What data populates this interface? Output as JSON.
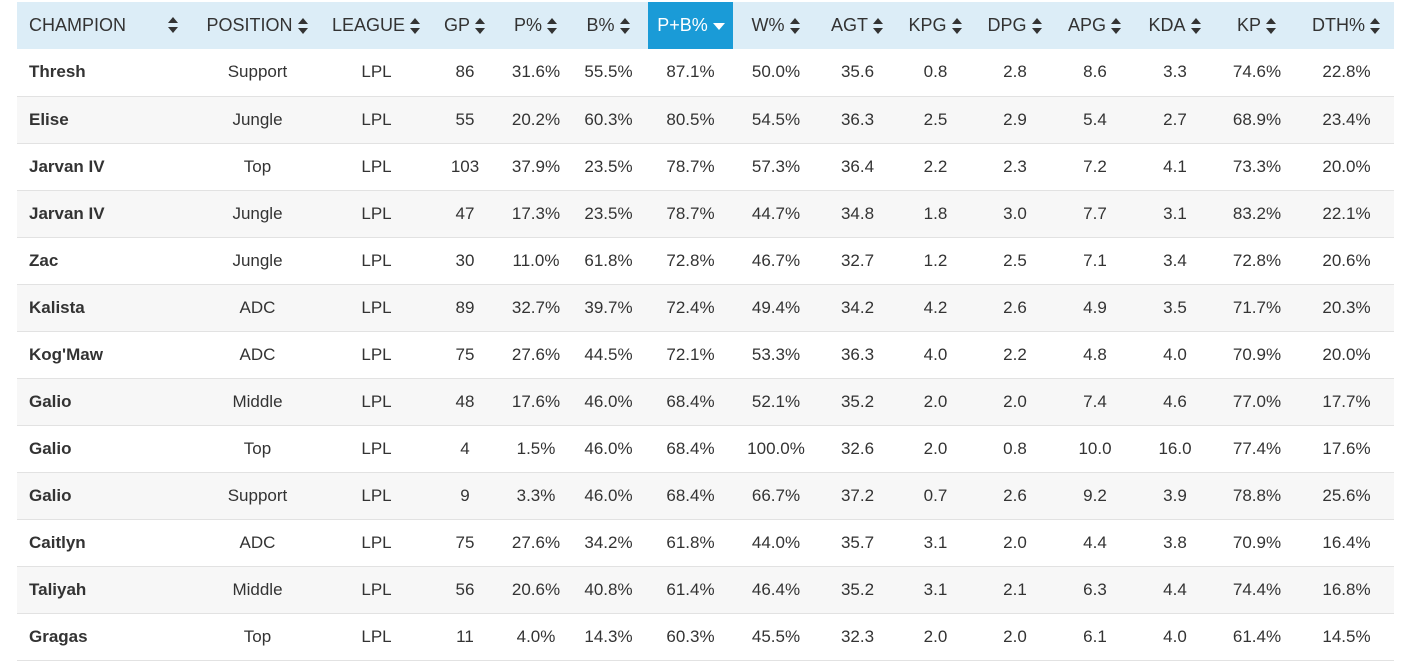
{
  "table": {
    "columns": [
      {
        "key": "champion",
        "label": "CHAMPION",
        "sortable": true,
        "active": false
      },
      {
        "key": "position",
        "label": "POSITION",
        "sortable": true,
        "active": false
      },
      {
        "key": "league",
        "label": "LEAGUE",
        "sortable": true,
        "active": false
      },
      {
        "key": "gp",
        "label": "GP",
        "sortable": true,
        "active": false
      },
      {
        "key": "p",
        "label": "P%",
        "sortable": true,
        "active": false
      },
      {
        "key": "b",
        "label": "B%",
        "sortable": true,
        "active": false
      },
      {
        "key": "pb",
        "label": "P+B%",
        "sortable": true,
        "active": true
      },
      {
        "key": "w",
        "label": "W%",
        "sortable": true,
        "active": false
      },
      {
        "key": "agt",
        "label": "AGT",
        "sortable": true,
        "active": false
      },
      {
        "key": "kpg",
        "label": "KPG",
        "sortable": true,
        "active": false
      },
      {
        "key": "dpg",
        "label": "DPG",
        "sortable": true,
        "active": false
      },
      {
        "key": "apg",
        "label": "APG",
        "sortable": true,
        "active": false
      },
      {
        "key": "kda",
        "label": "KDA",
        "sortable": true,
        "active": false
      },
      {
        "key": "kp",
        "label": "KP",
        "sortable": true,
        "active": false
      },
      {
        "key": "dth",
        "label": "DTH%",
        "sortable": true,
        "active": false
      }
    ],
    "rows": [
      [
        "Thresh",
        "Support",
        "LPL",
        "86",
        "31.6%",
        "55.5%",
        "87.1%",
        "50.0%",
        "35.6",
        "0.8",
        "2.8",
        "8.6",
        "3.3",
        "74.6%",
        "22.8%"
      ],
      [
        "Elise",
        "Jungle",
        "LPL",
        "55",
        "20.2%",
        "60.3%",
        "80.5%",
        "54.5%",
        "36.3",
        "2.5",
        "2.9",
        "5.4",
        "2.7",
        "68.9%",
        "23.4%"
      ],
      [
        "Jarvan IV",
        "Top",
        "LPL",
        "103",
        "37.9%",
        "23.5%",
        "78.7%",
        "57.3%",
        "36.4",
        "2.2",
        "2.3",
        "7.2",
        "4.1",
        "73.3%",
        "20.0%"
      ],
      [
        "Jarvan IV",
        "Jungle",
        "LPL",
        "47",
        "17.3%",
        "23.5%",
        "78.7%",
        "44.7%",
        "34.8",
        "1.8",
        "3.0",
        "7.7",
        "3.1",
        "83.2%",
        "22.1%"
      ],
      [
        "Zac",
        "Jungle",
        "LPL",
        "30",
        "11.0%",
        "61.8%",
        "72.8%",
        "46.7%",
        "32.7",
        "1.2",
        "2.5",
        "7.1",
        "3.4",
        "72.8%",
        "20.6%"
      ],
      [
        "Kalista",
        "ADC",
        "LPL",
        "89",
        "32.7%",
        "39.7%",
        "72.4%",
        "49.4%",
        "34.2",
        "4.2",
        "2.6",
        "4.9",
        "3.5",
        "71.7%",
        "20.3%"
      ],
      [
        "Kog'Maw",
        "ADC",
        "LPL",
        "75",
        "27.6%",
        "44.5%",
        "72.1%",
        "53.3%",
        "36.3",
        "4.0",
        "2.2",
        "4.8",
        "4.0",
        "70.9%",
        "20.0%"
      ],
      [
        "Galio",
        "Middle",
        "LPL",
        "48",
        "17.6%",
        "46.0%",
        "68.4%",
        "52.1%",
        "35.2",
        "2.0",
        "2.0",
        "7.4",
        "4.6",
        "77.0%",
        "17.7%"
      ],
      [
        "Galio",
        "Top",
        "LPL",
        "4",
        "1.5%",
        "46.0%",
        "68.4%",
        "100.0%",
        "32.6",
        "2.0",
        "0.8",
        "10.0",
        "16.0",
        "77.4%",
        "17.6%"
      ],
      [
        "Galio",
        "Support",
        "LPL",
        "9",
        "3.3%",
        "46.0%",
        "68.4%",
        "66.7%",
        "37.2",
        "0.7",
        "2.6",
        "9.2",
        "3.9",
        "78.8%",
        "25.6%"
      ],
      [
        "Caitlyn",
        "ADC",
        "LPL",
        "75",
        "27.6%",
        "34.2%",
        "61.8%",
        "44.0%",
        "35.7",
        "3.1",
        "2.0",
        "4.4",
        "3.8",
        "70.9%",
        "16.4%"
      ],
      [
        "Taliyah",
        "Middle",
        "LPL",
        "56",
        "20.6%",
        "40.8%",
        "61.4%",
        "46.4%",
        "35.2",
        "3.1",
        "2.1",
        "6.3",
        "4.4",
        "74.4%",
        "16.8%"
      ],
      [
        "Gragas",
        "Top",
        "LPL",
        "11",
        "4.0%",
        "14.3%",
        "60.3%",
        "45.5%",
        "32.3",
        "2.0",
        "2.0",
        "6.1",
        "4.0",
        "61.4%",
        "14.5%"
      ]
    ]
  },
  "colors": {
    "header_bg": "#dcedf7",
    "active_header_bg": "#1a9bd7",
    "row_alt_bg": "#f7f7f7",
    "text": "#333333"
  },
  "icons": {
    "sort": "sort-both-icon",
    "sort_active": "sort-desc-icon"
  }
}
